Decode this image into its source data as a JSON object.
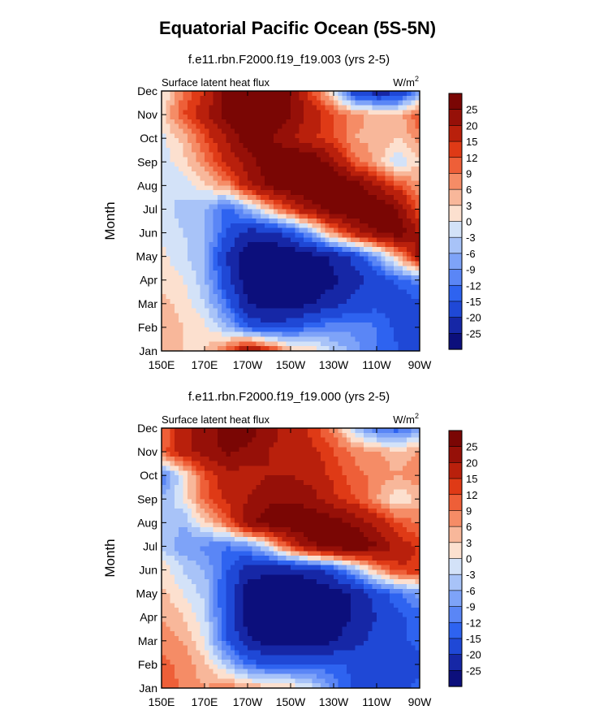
{
  "title": "Equatorial Pacific Ocean (5S-5N)",
  "palette": {
    "levels": [
      -25,
      -20,
      -15,
      -12,
      -9,
      -6,
      -3,
      0,
      3,
      6,
      9,
      12,
      15,
      20,
      25
    ],
    "colors": [
      "#0c0f7c",
      "#1627a6",
      "#1f48d6",
      "#2e63f0",
      "#5a86f6",
      "#7ea3f8",
      "#a8c3f8",
      "#d3e2f8",
      "#fce0cf",
      "#f8b79a",
      "#f58c66",
      "#ee5f38",
      "#df3a16",
      "#b9200c",
      "#961008",
      "#7a0604"
    ]
  },
  "chart_data": [
    {
      "type": "heatmap",
      "title": "f.e11.rbn.F2000.f19_f19.003 (yrs 2-5)",
      "left_label": "Surface latent heat flux",
      "units": "W/m",
      "units_sup": "2",
      "ylabel": "Month",
      "x_ticks": [
        "150E",
        "170E",
        "170W",
        "150W",
        "130W",
        "110W",
        "90W"
      ],
      "x_tick_lon": [
        150,
        170,
        190,
        210,
        230,
        250,
        270
      ],
      "xlim": [
        150,
        270
      ],
      "y_ticks": [
        "Jan",
        "Feb",
        "Mar",
        "Apr",
        "May",
        "Jun",
        "Jul",
        "Aug",
        "Sep",
        "Oct",
        "Nov",
        "Dec"
      ],
      "ylim": [
        1,
        12
      ],
      "colorbar_labels": [
        "25",
        "20",
        "15",
        "12",
        "9",
        "6",
        "3",
        "0",
        "-3",
        "-6",
        "-9",
        "-12",
        "-15",
        "-20",
        "-25"
      ],
      "lon": [
        150,
        160,
        170,
        180,
        190,
        200,
        210,
        220,
        230,
        240,
        250,
        260,
        270
      ],
      "values": [
        [
          4,
          3,
          3,
          10,
          24,
          15,
          5,
          3,
          -3,
          -8,
          -12,
          -15,
          -15
        ],
        [
          5,
          3,
          1,
          -5,
          -15,
          -18,
          -16,
          -12,
          -10,
          -10,
          -12,
          -16,
          -15
        ],
        [
          4,
          2,
          -3,
          -12,
          -25,
          -28,
          -28,
          -25,
          -22,
          -18,
          -16,
          -18,
          -16
        ],
        [
          2,
          0,
          -5,
          -18,
          -28,
          -30,
          -30,
          -28,
          -26,
          -22,
          -18,
          -14,
          -10
        ],
        [
          1,
          -2,
          -6,
          -20,
          -28,
          -30,
          -30,
          -27,
          -24,
          -18,
          -8,
          5,
          22
        ],
        [
          -1,
          -3,
          -5,
          -15,
          -22,
          -22,
          -16,
          -6,
          8,
          18,
          25,
          28,
          20
        ],
        [
          -2,
          -4,
          -6,
          -14,
          -6,
          4,
          14,
          22,
          28,
          30,
          30,
          25,
          10
        ],
        [
          -3,
          -2,
          2,
          7,
          18,
          26,
          30,
          32,
          32,
          28,
          20,
          12,
          6
        ],
        [
          -2,
          2,
          8,
          16,
          22,
          30,
          32,
          30,
          22,
          10,
          5,
          -3,
          3
        ],
        [
          -1,
          4,
          12,
          20,
          28,
          26,
          20,
          16,
          12,
          6,
          5,
          3,
          8
        ],
        [
          2,
          12,
          18,
          28,
          30,
          30,
          25,
          18,
          12,
          7,
          5,
          4,
          12
        ],
        [
          -1,
          9,
          15,
          28,
          30,
          30,
          26,
          12,
          0,
          -20,
          -24,
          -22,
          -10
        ]
      ]
    },
    {
      "type": "heatmap",
      "title": "f.e11.rbn.F2000.f19_f19.000 (yrs 2-5)",
      "left_label": "Surface latent heat flux",
      "units": "W/m",
      "units_sup": "2",
      "ylabel": "Month",
      "x_ticks": [
        "150E",
        "170E",
        "170W",
        "150W",
        "130W",
        "110W",
        "90W"
      ],
      "x_tick_lon": [
        150,
        170,
        190,
        210,
        230,
        250,
        270
      ],
      "xlim": [
        150,
        270
      ],
      "y_ticks": [
        "Jan",
        "Feb",
        "Mar",
        "Apr",
        "May",
        "Jun",
        "Jul",
        "Aug",
        "Sep",
        "Oct",
        "Nov",
        "Dec"
      ],
      "ylim": [
        1,
        12
      ],
      "colorbar_labels": [
        "25",
        "20",
        "15",
        "12",
        "9",
        "6",
        "3",
        "0",
        "-3",
        "-6",
        "-9",
        "-12",
        "-15",
        "-20",
        "-25"
      ],
      "lon": [
        150,
        160,
        170,
        180,
        190,
        200,
        210,
        220,
        230,
        240,
        250,
        260,
        270
      ],
      "values": [
        [
          12,
          8,
          6,
          8,
          6,
          4,
          3,
          -2,
          -10,
          -16,
          -18,
          -16,
          -14
        ],
        [
          10,
          8,
          4,
          -4,
          -12,
          -16,
          -15,
          -14,
          -14,
          -16,
          -18,
          -18,
          -16
        ],
        [
          8,
          6,
          0,
          -14,
          -24,
          -28,
          -28,
          -27,
          -26,
          -22,
          -18,
          -16,
          -14
        ],
        [
          6,
          3,
          -2,
          -16,
          -28,
          -30,
          -30,
          -30,
          -28,
          -24,
          -20,
          -16,
          -14
        ],
        [
          4,
          0,
          -4,
          -16,
          -28,
          -30,
          -30,
          -30,
          -28,
          -24,
          -18,
          -12,
          -8
        ],
        [
          2,
          -3,
          -6,
          -14,
          -22,
          -24,
          -24,
          -22,
          -16,
          -6,
          6,
          14,
          15
        ],
        [
          -3,
          -8,
          -10,
          -12,
          -10,
          0,
          14,
          24,
          28,
          30,
          26,
          18,
          14
        ],
        [
          -4,
          -6,
          2,
          10,
          24,
          28,
          30,
          30,
          28,
          24,
          18,
          12,
          8
        ],
        [
          -6,
          0,
          10,
          16,
          20,
          24,
          24,
          22,
          16,
          12,
          6,
          0,
          4
        ],
        [
          -12,
          0,
          12,
          18,
          18,
          20,
          20,
          18,
          14,
          10,
          8,
          6,
          8
        ],
        [
          10,
          18,
          22,
          26,
          24,
          20,
          18,
          16,
          12,
          8,
          6,
          4,
          6
        ],
        [
          8,
          18,
          22,
          28,
          28,
          22,
          18,
          14,
          8,
          -4,
          -12,
          -14,
          -8
        ]
      ]
    }
  ]
}
